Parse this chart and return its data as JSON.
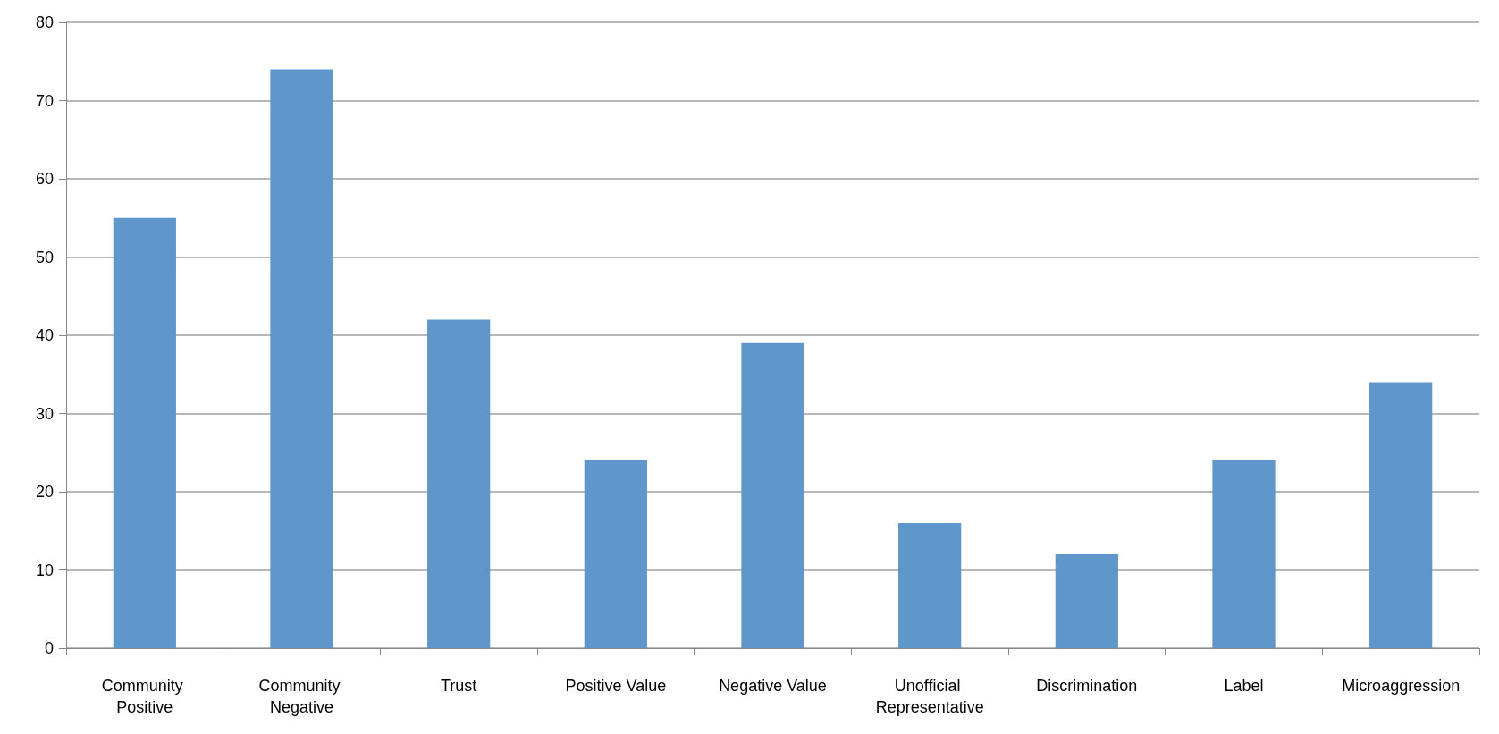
{
  "chart_data": {
    "type": "bar",
    "categories": [
      "Community Positive",
      "Community Negative",
      "Trust",
      "Positive Value",
      "Negative Value",
      "Unofficial Representative",
      "Discrimination",
      "Label",
      "Microaggression"
    ],
    "values": [
      55,
      74,
      42,
      24,
      39,
      16,
      12,
      24,
      34
    ],
    "color": "#6097cb",
    "ylim": [
      0,
      80
    ],
    "yticks": [
      0,
      10,
      20,
      30,
      40,
      50,
      60,
      70,
      80
    ],
    "grid": "y"
  }
}
